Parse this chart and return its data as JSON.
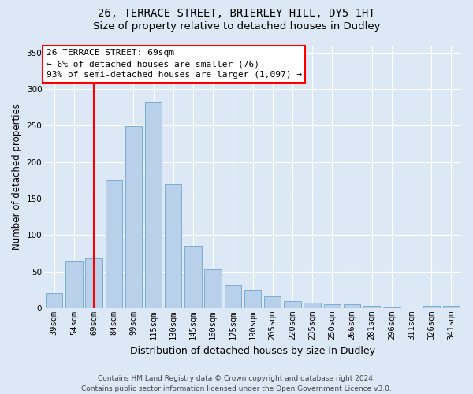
{
  "title": "26, TERRACE STREET, BRIERLEY HILL, DY5 1HT",
  "subtitle": "Size of property relative to detached houses in Dudley",
  "xlabel": "Distribution of detached houses by size in Dudley",
  "ylabel": "Number of detached properties",
  "footer_line1": "Contains HM Land Registry data © Crown copyright and database right 2024.",
  "footer_line2": "Contains public sector information licensed under the Open Government Licence v3.0.",
  "categories": [
    "39sqm",
    "54sqm",
    "69sqm",
    "84sqm",
    "99sqm",
    "115sqm",
    "130sqm",
    "145sqm",
    "160sqm",
    "175sqm",
    "190sqm",
    "205sqm",
    "220sqm",
    "235sqm",
    "250sqm",
    "266sqm",
    "281sqm",
    "296sqm",
    "311sqm",
    "326sqm",
    "341sqm"
  ],
  "values": [
    20,
    65,
    68,
    175,
    249,
    282,
    169,
    85,
    53,
    31,
    25,
    16,
    10,
    7,
    5,
    5,
    3,
    1,
    0,
    3,
    3
  ],
  "bar_color": "#b8d0ea",
  "bar_edge_color": "#7aadd4",
  "redline_x": 2,
  "annotation_line1": "26 TERRACE STREET: 69sqm",
  "annotation_line2": "← 6% of detached houses are smaller (76)",
  "annotation_line3": "93% of semi-detached houses are larger (1,097) →",
  "annotation_box_edge_color": "red",
  "redline_color": "red",
  "ylim": [
    0,
    360
  ],
  "yticks": [
    0,
    50,
    100,
    150,
    200,
    250,
    300,
    350
  ],
  "bg_color": "#dce8f5",
  "grid_color": "#ffffff",
  "title_fontsize": 10,
  "subtitle_fontsize": 9.5,
  "ylabel_fontsize": 8.5,
  "xlabel_fontsize": 9,
  "tick_fontsize": 7.5,
  "annot_fontsize": 8,
  "footer_fontsize": 6.5
}
